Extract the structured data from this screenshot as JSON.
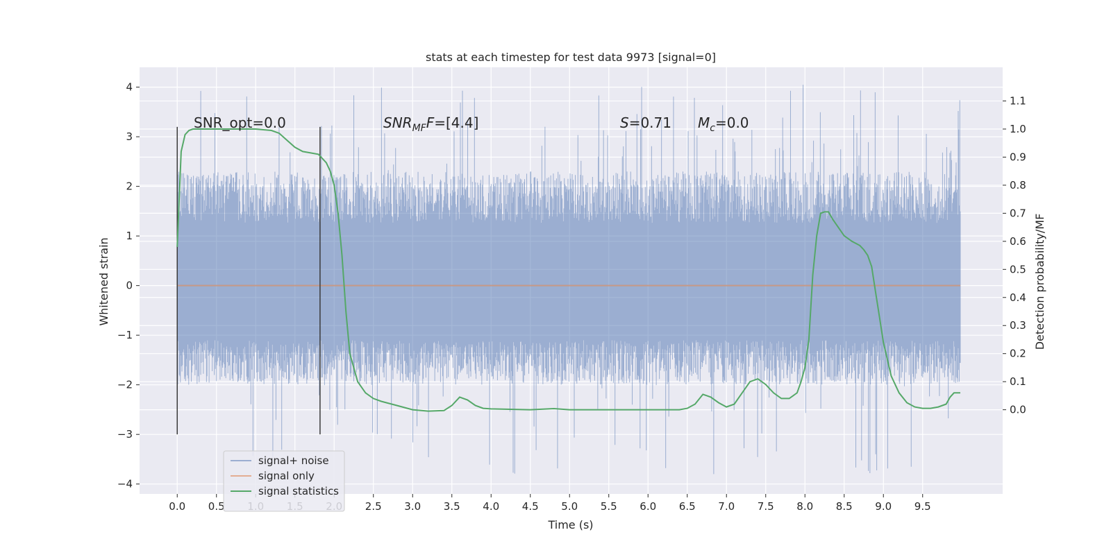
{
  "chart_data": {
    "type": "line",
    "title": "stats at each timestep for test data 9973 [signal=0]",
    "xlabel": "Time (s)",
    "ylabel": "Whitened strain",
    "y2label": "Detection probability/MF",
    "xlim": [
      -0.48,
      10.52
    ],
    "ylim": [
      -4.2,
      4.4
    ],
    "y2lim": [
      -0.3,
      1.22
    ],
    "xticks": [
      "0.0",
      "0.5",
      "1.0",
      "1.5",
      "2.0",
      "2.5",
      "3.0",
      "3.5",
      "4.0",
      "4.5",
      "5.0",
      "5.5",
      "6.0",
      "6.5",
      "7.0",
      "7.5",
      "8.0",
      "8.5",
      "9.0",
      "9.5"
    ],
    "yticks": [
      "−4",
      "−3",
      "−2",
      "−1",
      "0",
      "1",
      "2",
      "3",
      "4"
    ],
    "y2ticks": [
      "0.0",
      "0.1",
      "0.2",
      "0.3",
      "0.4",
      "0.5",
      "0.6",
      "0.7",
      "0.8",
      "0.9",
      "1.0",
      "1.1"
    ],
    "grid": true,
    "legend_position": "lower-left",
    "annotations": {
      "snr_opt": "SNR_opt=0.0",
      "snr_mf_prefix": "SNR",
      "snr_mf_sub": "MF",
      "snr_mf_suffix": "=[4.4]",
      "s_prefix": "S",
      "s_suffix": "=0.71",
      "mc_prefix": "M",
      "mc_sub": "c",
      "mc_suffix": "=0.0"
    },
    "vertical_markers": [
      {
        "x": 0.0,
        "ymin": -3.0,
        "ymax": 3.2
      },
      {
        "x": 1.82,
        "ymin": -3.0,
        "ymax": 3.2
      }
    ],
    "series": [
      {
        "name": "signal+ noise",
        "color": "#4c72b0",
        "opacity": 0.5,
        "type": "noise",
        "x_range": [
          0.0,
          9.98
        ],
        "typical_range": [
          -2.0,
          2.3
        ],
        "min": -3.85,
        "max": 4.05
      },
      {
        "name": "signal only",
        "color": "#dd8452",
        "opacity": 0.6,
        "type": "line",
        "x": [
          0.0,
          9.98
        ],
        "y": [
          0.0,
          0.0
        ]
      },
      {
        "name": "signal statistics",
        "color": "#55a868",
        "axis": "right",
        "type": "line",
        "x": [
          0.0,
          0.05,
          0.1,
          0.15,
          0.2,
          0.3,
          0.5,
          0.7,
          1.0,
          1.2,
          1.3,
          1.4,
          1.5,
          1.6,
          1.7,
          1.8,
          1.9,
          1.95,
          2.0,
          2.05,
          2.1,
          2.15,
          2.2,
          2.3,
          2.4,
          2.5,
          2.6,
          2.8,
          3.0,
          3.2,
          3.4,
          3.5,
          3.6,
          3.7,
          3.8,
          3.9,
          4.0,
          4.5,
          4.8,
          5.0,
          5.5,
          5.8,
          6.0,
          6.2,
          6.4,
          6.5,
          6.6,
          6.7,
          6.8,
          6.9,
          7.0,
          7.1,
          7.2,
          7.3,
          7.4,
          7.5,
          7.6,
          7.7,
          7.8,
          7.9,
          7.95,
          8.0,
          8.05,
          8.1,
          8.15,
          8.2,
          8.25,
          8.3,
          8.35,
          8.4,
          8.5,
          8.6,
          8.7,
          8.75,
          8.8,
          8.85,
          8.9,
          8.95,
          9.0,
          9.1,
          9.2,
          9.3,
          9.4,
          9.5,
          9.6,
          9.7,
          9.8,
          9.85,
          9.9,
          9.98
        ],
        "y": [
          0.58,
          0.92,
          0.98,
          0.995,
          1.0,
          1.0,
          1.0,
          1.0,
          1.0,
          0.995,
          0.985,
          0.96,
          0.935,
          0.92,
          0.915,
          0.91,
          0.88,
          0.85,
          0.8,
          0.7,
          0.55,
          0.35,
          0.2,
          0.1,
          0.06,
          0.04,
          0.03,
          0.015,
          0.0,
          -0.005,
          -0.003,
          0.015,
          0.045,
          0.035,
          0.015,
          0.005,
          0.003,
          0.0,
          0.004,
          0.0,
          0.0,
          0.0,
          0.0,
          0.0,
          0.0,
          0.005,
          0.02,
          0.055,
          0.045,
          0.025,
          0.01,
          0.02,
          0.06,
          0.1,
          0.11,
          0.09,
          0.06,
          0.04,
          0.04,
          0.06,
          0.1,
          0.15,
          0.25,
          0.48,
          0.62,
          0.7,
          0.705,
          0.705,
          0.68,
          0.66,
          0.62,
          0.6,
          0.585,
          0.57,
          0.55,
          0.51,
          0.42,
          0.33,
          0.24,
          0.12,
          0.06,
          0.025,
          0.01,
          0.005,
          0.005,
          0.01,
          0.02,
          0.045,
          0.06,
          0.06
        ]
      }
    ]
  }
}
